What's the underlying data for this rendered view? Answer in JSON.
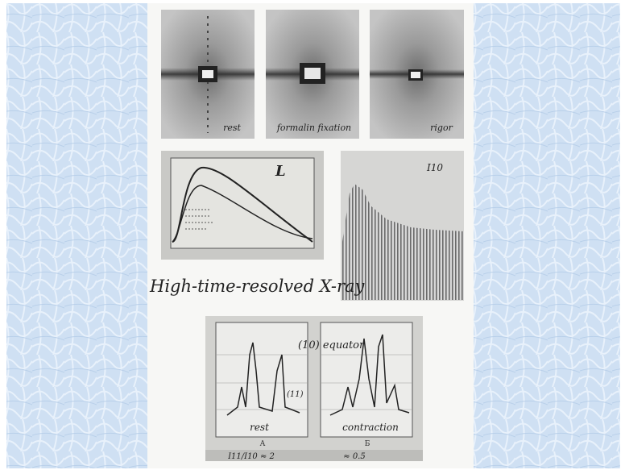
{
  "diffraction_photos": [
    {
      "caption": "rest"
    },
    {
      "caption": "formalin fixation"
    },
    {
      "caption": "rigor"
    }
  ],
  "time_plot": {
    "label": "L"
  },
  "bar_record": {
    "label": "I10"
  },
  "heading": "High-time-resolved X-ray",
  "profiles": {
    "peak_label": "(10) equator",
    "secondary_label": "(11)",
    "panels": [
      {
        "caption": "rest",
        "letter": "A",
        "ratio": "I11/I10 ≈ 2"
      },
      {
        "caption": "contraction",
        "letter": "Б",
        "ratio": "≈ 0.5"
      }
    ]
  }
}
